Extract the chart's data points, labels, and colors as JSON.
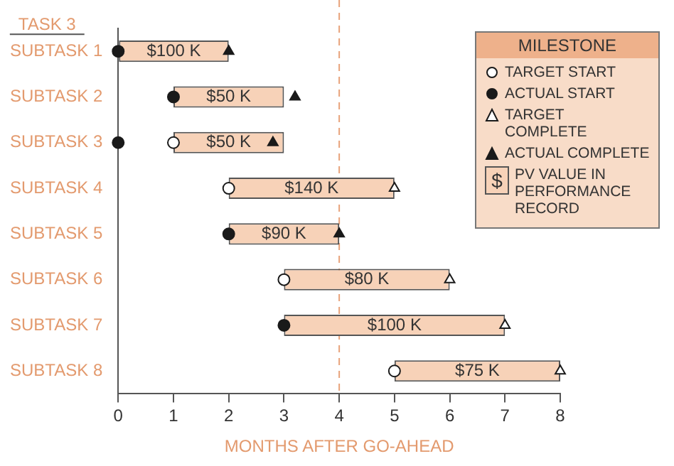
{
  "chart_data": {
    "type": "bar",
    "orientation": "horizontal",
    "ylabel": "TASK 3",
    "xlabel": "MONTHS AFTER GO-AHEAD",
    "legend_title": "MILESTONE",
    "legend": "top right",
    "grid": false,
    "categories": [
      "SUBTASK 1",
      "SUBTASK 2",
      "SUBTASK 3",
      "SUBTASK 4",
      "SUBTASK 5",
      "SUBTASK 6",
      "SUBTASK 7",
      "SUBTASK 8"
    ],
    "xlim": [
      0,
      8
    ],
    "xticks": [
      0,
      1,
      2,
      3,
      4,
      5,
      6,
      7,
      8
    ],
    "series": [
      {
        "type": "scatter",
        "name": "TARGET START",
        "color": "#ffffff",
        "marker": "circle",
        "values": [
          null,
          null,
          1,
          2,
          null,
          3,
          null,
          5
        ]
      },
      {
        "type": "scatter",
        "name": "ACTUAL START",
        "color": "#1a1a1a",
        "marker": "circle",
        "values": [
          0,
          1,
          0,
          null,
          2,
          null,
          3,
          null
        ]
      },
      {
        "type": "scatter",
        "name": "TARGET COMPLETE",
        "color": "#ffffff",
        "marker": "triangle",
        "values": [
          null,
          null,
          null,
          5,
          null,
          6,
          7,
          8
        ]
      },
      {
        "type": "scatter",
        "name": "ACTUAL COMPLETE",
        "color": "#1a1a1a",
        "marker": "triangle",
        "values": [
          2,
          3.2,
          2.8,
          null,
          4,
          null,
          null,
          null
        ]
      },
      {
        "name": "PV VALUE IN PERFORMANCE RECORD",
        "color": "#f7d2b8",
        "base": [
          0,
          1,
          1,
          2,
          2,
          3,
          3,
          5
        ],
        "values": [
          2,
          2,
          2,
          3,
          2,
          3,
          4,
          3
        ]
      }
    ],
    "ref_lines": [
      {
        "axis": "x",
        "value": 4,
        "color": "#e8a27a",
        "line_style": "dashed"
      }
    ],
    "annotations": [
      "$100 K",
      "$50 K",
      "$50 K",
      "$140 K",
      "$90 K",
      "$80 K",
      "$100 K",
      "$75 K",
      "$"
    ]
  }
}
